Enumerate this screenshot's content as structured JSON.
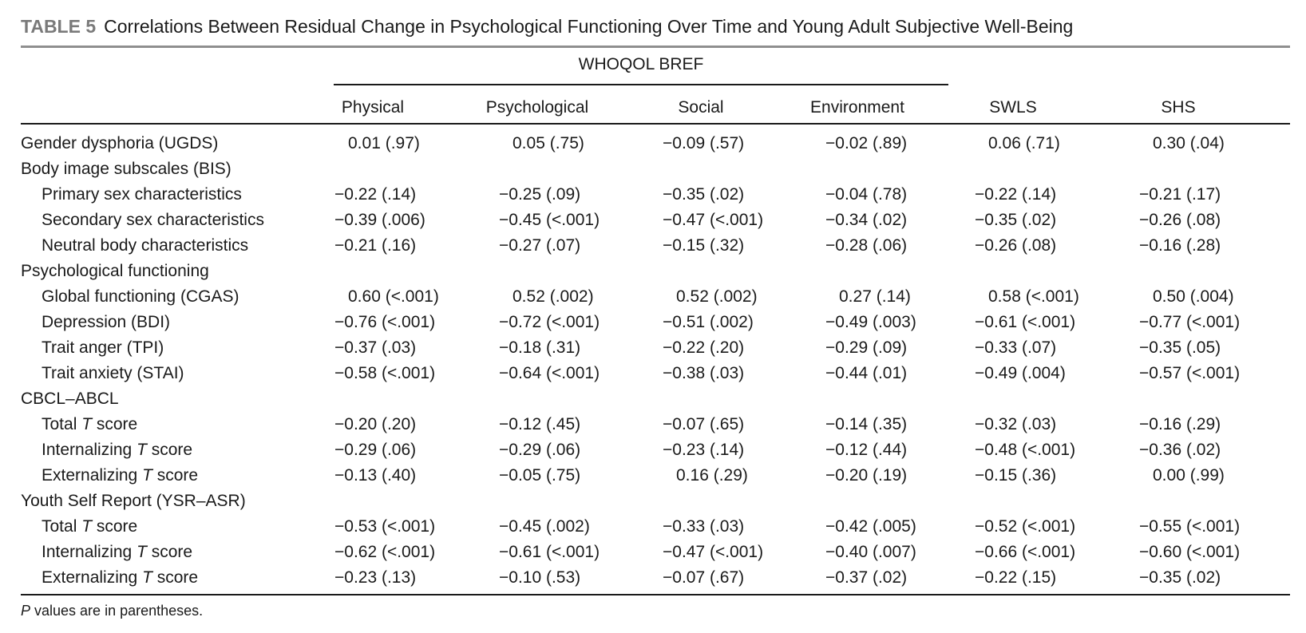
{
  "caption": {
    "label": "TABLE 5",
    "title": "Correlations Between Residual Change in Psychological Functioning Over Time and Young Adult Subjective Well-Being"
  },
  "span_header": "WHOQOL BREF",
  "columns": [
    "Physical",
    "Psychological",
    "Social",
    "Environment",
    "SWLS",
    "SHS"
  ],
  "rows": [
    {
      "label": "Gender dysphoria (UGDS)",
      "indent": false,
      "values": [
        "0.01 (.97)",
        "0.05 (.75)",
        "−0.09 (.57)",
        "−0.02 (.89)",
        "0.06 (.71)",
        "0.30 (.04)"
      ]
    },
    {
      "label": "Body image subscales (BIS)",
      "indent": false,
      "values": []
    },
    {
      "label": "Primary sex characteristics",
      "indent": true,
      "values": [
        "−0.22 (.14)",
        "−0.25 (.09)",
        "−0.35 (.02)",
        "−0.04 (.78)",
        "−0.22 (.14)",
        "−0.21 (.17)"
      ]
    },
    {
      "label": "Secondary sex characteristics",
      "indent": true,
      "values": [
        "−0.39 (.006)",
        "−0.45 (<.001)",
        "−0.47 (<.001)",
        "−0.34 (.02)",
        "−0.35 (.02)",
        "−0.26 (.08)"
      ]
    },
    {
      "label": "Neutral body characteristics",
      "indent": true,
      "values": [
        "−0.21 (.16)",
        "−0.27 (.07)",
        "−0.15 (.32)",
        "−0.28 (.06)",
        "−0.26 (.08)",
        "−0.16 (.28)"
      ]
    },
    {
      "label": "Psychological functioning",
      "indent": false,
      "values": []
    },
    {
      "label": "Global functioning (CGAS)",
      "indent": true,
      "values": [
        "0.60 (<.001)",
        "0.52 (.002)",
        "0.52 (.002)",
        "0.27 (.14)",
        "0.58 (<.001)",
        "0.50 (.004)"
      ]
    },
    {
      "label": "Depression (BDI)",
      "indent": true,
      "values": [
        "−0.76 (<.001)",
        "−0.72 (<.001)",
        "−0.51 (.002)",
        "−0.49 (.003)",
        "−0.61 (<.001)",
        "−0.77 (<.001)"
      ]
    },
    {
      "label": "Trait anger (TPI)",
      "indent": true,
      "values": [
        "−0.37 (.03)",
        "−0.18 (.31)",
        "−0.22 (.20)",
        "−0.29 (.09)",
        "−0.33 (.07)",
        "−0.35 (.05)"
      ]
    },
    {
      "label": "Trait anxiety (STAI)",
      "indent": true,
      "values": [
        "−0.58 (<.001)",
        "−0.64 (<.001)",
        "−0.38 (.03)",
        "−0.44 (.01)",
        "−0.49 (.004)",
        "−0.57 (<.001)"
      ]
    },
    {
      "label": "CBCL–ABCL",
      "indent": false,
      "values": []
    },
    {
      "label": "Total T score",
      "indent": true,
      "italic_t": true,
      "values": [
        "−0.20 (.20)",
        "−0.12 (.45)",
        "−0.07 (.65)",
        "−0.14 (.35)",
        "−0.32 (.03)",
        "−0.16 (.29)"
      ]
    },
    {
      "label": "Internalizing T score",
      "indent": true,
      "italic_t": true,
      "values": [
        "−0.29 (.06)",
        "−0.29 (.06)",
        "−0.23 (.14)",
        "−0.12 (.44)",
        "−0.48 (<.001)",
        "−0.36 (.02)"
      ]
    },
    {
      "label": "Externalizing T score",
      "indent": true,
      "italic_t": true,
      "values": [
        "−0.13 (.40)",
        "−0.05 (.75)",
        "0.16 (.29)",
        "−0.20 (.19)",
        "−0.15 (.36)",
        "0.00 (.99)"
      ]
    },
    {
      "label": "Youth Self Report (YSR–ASR)",
      "indent": false,
      "values": []
    },
    {
      "label": "Total T score",
      "indent": true,
      "italic_t": true,
      "values": [
        "−0.53 (<.001)",
        "−0.45 (.002)",
        "−0.33 (.03)",
        "−0.42 (.005)",
        "−0.52 (<.001)",
        "−0.55 (<.001)"
      ]
    },
    {
      "label": "Internalizing T score",
      "indent": true,
      "italic_t": true,
      "values": [
        "−0.62 (<.001)",
        "−0.61 (<.001)",
        "−0.47 (<.001)",
        "−0.40 (.007)",
        "−0.66 (<.001)",
        "−0.60 (<.001)"
      ]
    },
    {
      "label": "Externalizing T score",
      "indent": true,
      "italic_t": true,
      "values": [
        "−0.23 (.13)",
        "−0.10 (.53)",
        "−0.07 (.67)",
        "−0.37 (.02)",
        "−0.22 (.15)",
        "−0.35 (.02)"
      ]
    }
  ],
  "footnote": {
    "italic": "P",
    "text": " values are in parentheses."
  }
}
